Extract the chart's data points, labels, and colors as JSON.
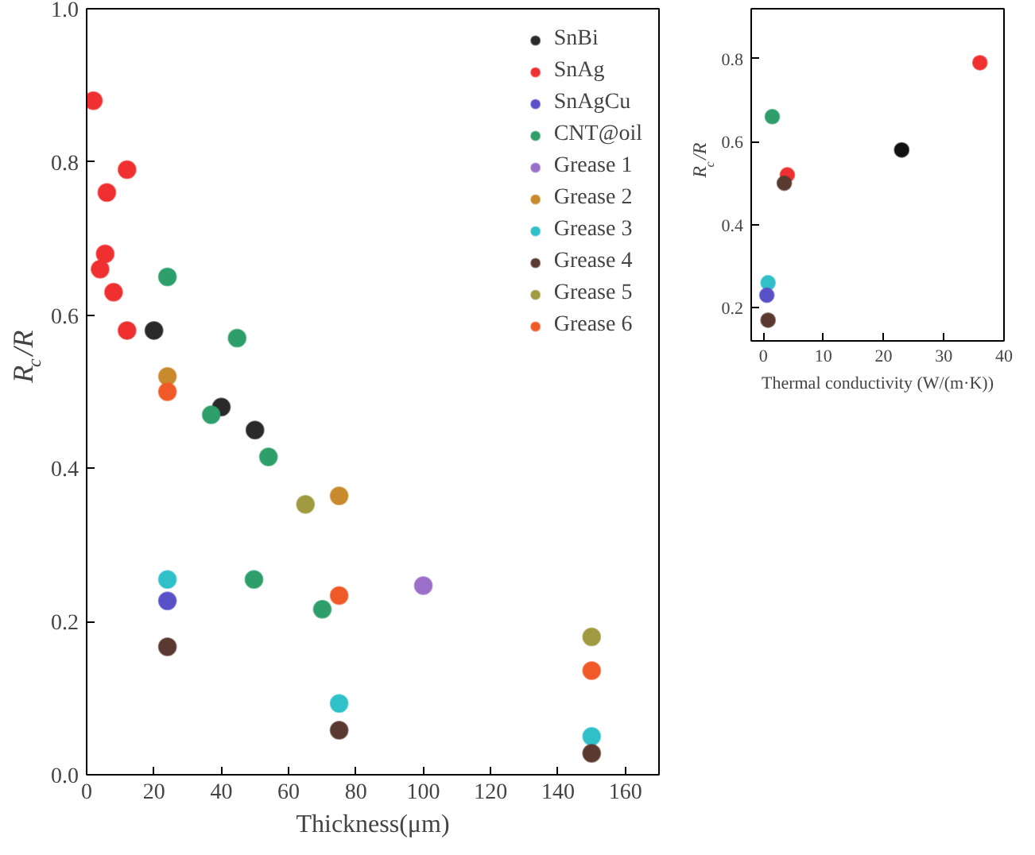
{
  "chart_data": [
    {
      "type": "scatter",
      "xlabel": "Thickness(μm)",
      "ylabel": "R$_{c}$/R",
      "xlim": [
        0,
        170
      ],
      "ylim": [
        0,
        1.0
      ],
      "xticks": [
        0,
        20,
        40,
        60,
        80,
        100,
        120,
        140,
        160
      ],
      "yticks": [
        {
          "value": 0,
          "label": "0.0"
        },
        0.2,
        0.4,
        0.6,
        0.8,
        {
          "value": 1.0,
          "label": "1.0"
        }
      ],
      "legend": "top right",
      "marker": "circle",
      "grid": false,
      "series": [
        {
          "name": "SnBi",
          "color": "#2a2a2a",
          "x": [
            20,
            40,
            50
          ],
          "values": [
            0.58,
            0.48,
            0.45
          ]
        },
        {
          "name": "SnAg",
          "color": "#f03030",
          "x": [
            2,
            4,
            5.5,
            6,
            8,
            12,
            12
          ],
          "values": [
            0.88,
            0.66,
            0.68,
            0.76,
            0.63,
            0.79,
            0.58
          ]
        },
        {
          "name": "SnAgCu",
          "color": "#5a50c8",
          "x": [
            24
          ],
          "values": [
            0.227
          ]
        },
        {
          "name": "CNT@oil",
          "color": "#2e9e6a",
          "x": [
            24,
            37,
            44.7,
            49.7,
            54,
            70
          ],
          "values": [
            0.65,
            0.47,
            0.57,
            0.255,
            0.415,
            0.216
          ]
        },
        {
          "name": "Grease 1",
          "color": "#9a70c8",
          "x": [
            100
          ],
          "values": [
            0.247
          ]
        },
        {
          "name": "Grease 2",
          "color": "#c98a2e",
          "x": [
            24,
            75
          ],
          "values": [
            0.52,
            0.364
          ]
        },
        {
          "name": "Grease 3",
          "color": "#2fc0c8",
          "x": [
            24,
            75,
            150
          ],
          "values": [
            0.255,
            0.093,
            0.05
          ]
        },
        {
          "name": "Grease 4",
          "color": "#5a3a30",
          "x": [
            24,
            75,
            150
          ],
          "values": [
            0.167,
            0.058,
            0.028
          ]
        },
        {
          "name": "Grease 5",
          "color": "#a09a40",
          "x": [
            65,
            150
          ],
          "values": [
            0.353,
            0.18
          ]
        },
        {
          "name": "Grease 6",
          "color": "#f05a28",
          "x": [
            24,
            75,
            150
          ],
          "values": [
            0.5,
            0.234,
            0.136
          ]
        }
      ]
    },
    {
      "type": "scatter",
      "xlabel": "Thermal conductivity (W/(m·K))",
      "ylabel": "R$_{c}$/R",
      "xlim": [
        -2,
        40
      ],
      "ylim": [
        0.12,
        0.92
      ],
      "xticks": [
        0,
        10,
        20,
        30,
        40
      ],
      "yticks": [
        0.2,
        0.4,
        0.6,
        0.8
      ],
      "marker": "circle",
      "grid": false,
      "series": [
        {
          "color": "#111111",
          "x": [
            23
          ],
          "values": [
            0.58
          ]
        },
        {
          "color": "#f03030",
          "x": [
            36,
            4
          ],
          "values": [
            0.79,
            0.52
          ]
        },
        {
          "color": "#5a3a30",
          "x": [
            3.5,
            0.8
          ],
          "values": [
            0.5,
            0.17
          ]
        },
        {
          "color": "#2e9e6a",
          "x": [
            1.5
          ],
          "values": [
            0.66
          ]
        },
        {
          "color": "#2fc0c8",
          "x": [
            0.8
          ],
          "values": [
            0.26
          ]
        },
        {
          "color": "#5a50c8",
          "x": [
            0.6
          ],
          "values": [
            0.23
          ]
        }
      ]
    }
  ]
}
